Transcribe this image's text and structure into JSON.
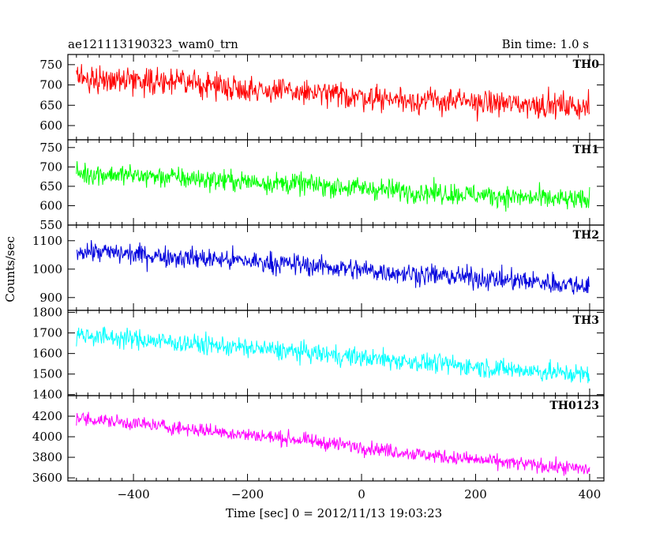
{
  "header": {
    "left": "ae121113190323_wam0_trn",
    "right": "Bin time: 1.0 s"
  },
  "axes": {
    "xlabel": "Time [sec] 0 = 2012/11/13 19:03:23",
    "ylabel": "Counts/sec"
  },
  "chart_data": {
    "type": "line",
    "title": "ae121113190323_wam0_trn",
    "subtitle": "Bin time: 1.0 s",
    "xlabel": "Time [sec] 0 = 2012/11/13 19:03:23",
    "ylabel": "Counts/sec",
    "xlim": [
      -515,
      425
    ],
    "xticks": [
      -400,
      -200,
      0,
      200,
      400
    ],
    "x_range_of_data": [
      -500,
      400
    ],
    "bin_time_sec": 1.0,
    "grid": false,
    "panels": [
      {
        "name": "TH0",
        "color": "#ff0000",
        "ylim": [
          565,
          775
        ],
        "yticks": [
          600,
          650,
          700,
          750
        ],
        "start_level": 715,
        "end_level": 645,
        "noise_amplitude": 25,
        "x": [
          -500,
          -400,
          -300,
          -200,
          -100,
          0,
          100,
          200,
          300,
          400
        ],
        "values": [
          716,
          713,
          705,
          690,
          681,
          671,
          662,
          657,
          652,
          646
        ]
      },
      {
        "name": "TH1",
        "color": "#00ff00",
        "ylim": [
          550,
          770
        ],
        "yticks": [
          550,
          600,
          650,
          700,
          750
        ],
        "start_level": 683,
        "end_level": 612,
        "noise_amplitude": 22,
        "x": [
          -500,
          -400,
          -300,
          -200,
          -100,
          0,
          100,
          200,
          300,
          400
        ],
        "values": [
          684,
          678,
          670,
          662,
          655,
          645,
          636,
          628,
          620,
          612
        ]
      },
      {
        "name": "TH2",
        "color": "#0000dd",
        "ylim": [
          855,
          1155
        ],
        "yticks": [
          900,
          1000,
          1100
        ],
        "start_level": 1065,
        "end_level": 940,
        "noise_amplitude": 30,
        "x": [
          -500,
          -400,
          -300,
          -200,
          -100,
          0,
          100,
          200,
          300,
          400
        ],
        "values": [
          1066,
          1052,
          1040,
          1028,
          1015,
          997,
          982,
          969,
          956,
          941
        ]
      },
      {
        "name": "TH3",
        "color": "#00ffff",
        "ylim": [
          1395,
          1810
        ],
        "yticks": [
          1400,
          1500,
          1600,
          1700,
          1800
        ],
        "start_level": 1690,
        "end_level": 1495,
        "noise_amplitude": 38,
        "x": [
          -500,
          -400,
          -300,
          -200,
          -100,
          0,
          100,
          200,
          300,
          400
        ],
        "values": [
          1692,
          1670,
          1648,
          1627,
          1605,
          1580,
          1558,
          1536,
          1515,
          1496
        ]
      },
      {
        "name": "TH0123",
        "color": "#ff00ff",
        "ylim": [
          3570,
          4400
        ],
        "yticks": [
          3600,
          3800,
          4000,
          4200
        ],
        "start_level": 4180,
        "end_level": 3680,
        "noise_amplitude": 55,
        "x": [
          -500,
          -400,
          -300,
          -200,
          -100,
          0,
          100,
          200,
          300,
          400
        ],
        "values": [
          4182,
          4130,
          4075,
          4020,
          3965,
          3900,
          3830,
          3775,
          3725,
          3682
        ]
      }
    ]
  }
}
